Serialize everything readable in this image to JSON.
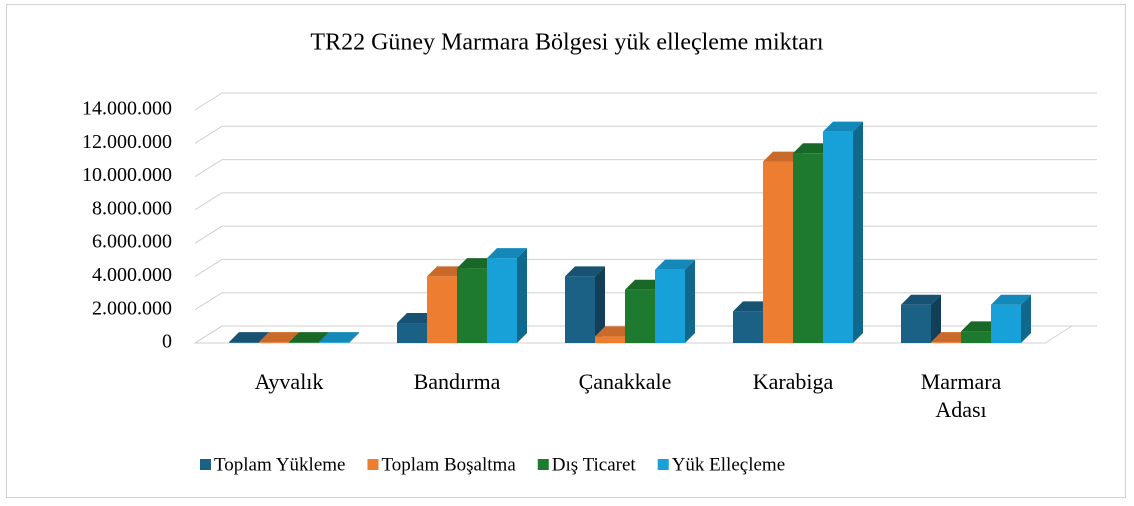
{
  "chart_data": {
    "type": "bar3d",
    "title": "TR22 Güney Marmara Bölgesi yük elleçleme miktarı",
    "categories": [
      "Ayvalık",
      "Bandırma",
      "Çanakkale",
      "Karabiga",
      "Marmara Adası"
    ],
    "series": [
      {
        "name": "Toplam Yükleme",
        "color": "#1b6186",
        "values": [
          50000,
          1200000,
          4000000,
          1900000,
          2300000
        ]
      },
      {
        "name": "Toplam Boşaltma",
        "color": "#ed7d31",
        "values": [
          50000,
          4000000,
          400000,
          10900000,
          50000
        ]
      },
      {
        "name": "Dış Ticaret",
        "color": "#1e7a2e",
        "values": [
          50000,
          4500000,
          3200000,
          11400000,
          700000
        ]
      },
      {
        "name": "Yük Elleçleme",
        "color": "#18a0d8",
        "values": [
          50000,
          5100000,
          4400000,
          12700000,
          2300000
        ]
      }
    ],
    "ylim": [
      0,
      14000000
    ],
    "yticks": [
      0,
      {
        "value": 2000000,
        "label": "2.000.000"
      },
      {
        "value": 4000000,
        "label": "4.000.000"
      },
      {
        "value": 6000000,
        "label": "6.000.000"
      },
      {
        "value": 8000000,
        "label": "8.000.000"
      },
      {
        "value": 10000000,
        "label": "10.000.000"
      },
      {
        "value": 12000000,
        "label": "12.000.000"
      },
      {
        "value": 14000000,
        "label": "14.000.000"
      }
    ],
    "grid": true,
    "legend": "bottom"
  }
}
